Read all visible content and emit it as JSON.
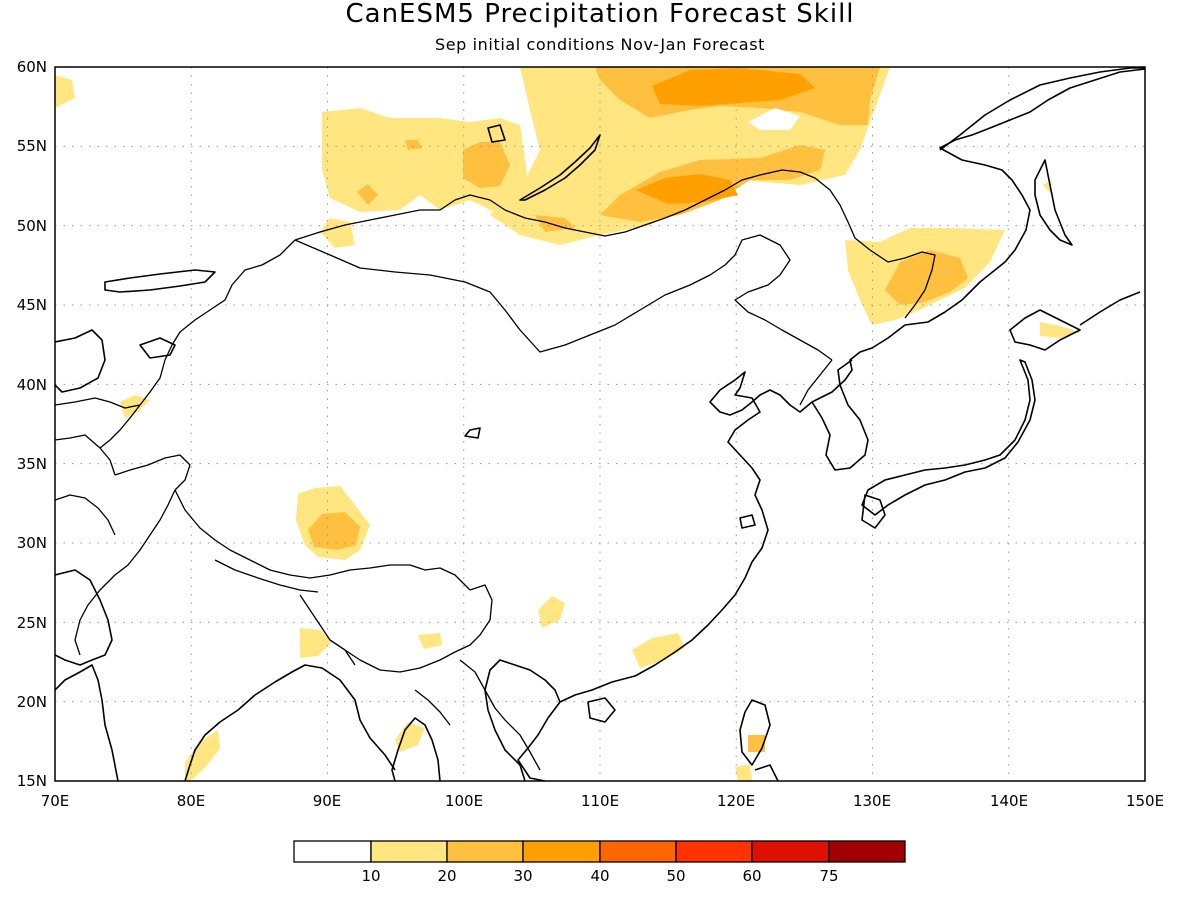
{
  "title": "CanESM5 Precipitation Forecast Skill",
  "subtitle": "Sep initial conditions  Nov-Jan Forecast",
  "map": {
    "lon_range": [
      70,
      150
    ],
    "lat_range": [
      15,
      60
    ],
    "lon_ticks": [
      "70E",
      "80E",
      "90E",
      "100E",
      "110E",
      "120E",
      "130E",
      "140E",
      "150E"
    ],
    "lat_ticks": [
      "15N",
      "20N",
      "25N",
      "30N",
      "35N",
      "40N",
      "45N",
      "50N",
      "55N",
      "60N"
    ],
    "grid": "dotted"
  },
  "colorbar": {
    "labels": [
      "10",
      "20",
      "30",
      "40",
      "50",
      "60",
      "75"
    ],
    "colors": [
      "#ffffff",
      "#ffe680",
      "#ffc040",
      "#ffa000",
      "#ff6600",
      "#ff3300",
      "#e01000",
      "#a00000"
    ]
  }
}
